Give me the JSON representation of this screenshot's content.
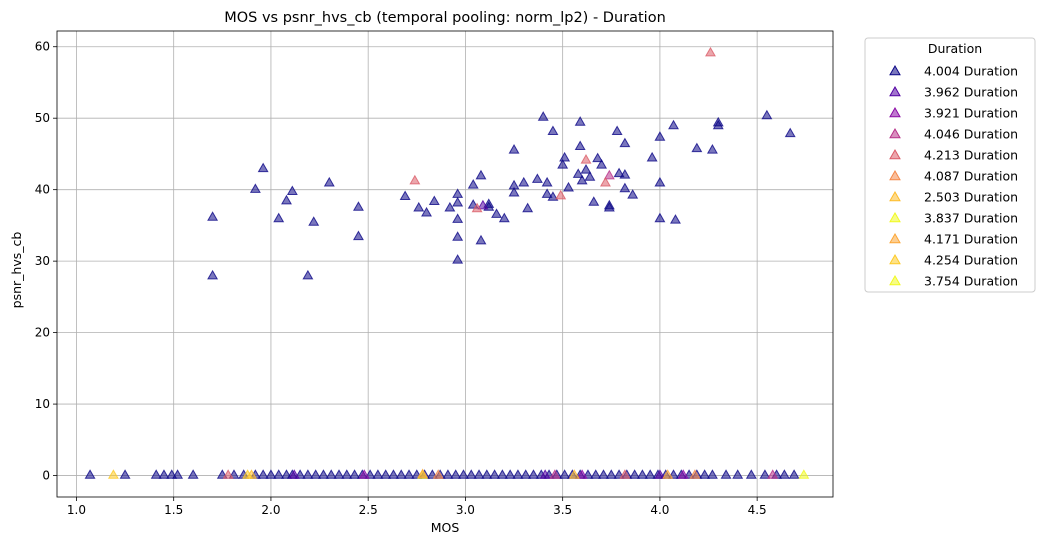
{
  "chart_data": {
    "type": "scatter",
    "title": "MOS vs psnr_hvs_cb (temporal pooling: norm_lp2) - Duration",
    "xlabel": "MOS",
    "ylabel": "psnr_hvs_cb",
    "xlim": [
      0.9,
      4.89
    ],
    "ylim": [
      -3,
      62.2
    ],
    "xticks": [
      1.0,
      1.5,
      2.0,
      2.5,
      3.0,
      3.5,
      4.0,
      4.5
    ],
    "xtick_labels": [
      "1.0",
      "1.5",
      "2.0",
      "2.5",
      "3.0",
      "3.5",
      "4.0",
      "4.5"
    ],
    "yticks": [
      0,
      10,
      20,
      30,
      40,
      50,
      60
    ],
    "ytick_labels": [
      "0",
      "10",
      "20",
      "30",
      "40",
      "50",
      "60"
    ],
    "grid": true,
    "marker": "triangle",
    "legend": {
      "title": "Duration",
      "placement": "outside-right"
    },
    "series": [
      {
        "name": "4.004 Duration",
        "color": "#0d0887",
        "points": [
          [
            1.7,
            36.2
          ],
          [
            1.7,
            28.0
          ],
          [
            1.92,
            40.1
          ],
          [
            1.96,
            43.0
          ],
          [
            2.04,
            36.0
          ],
          [
            2.08,
            38.5
          ],
          [
            2.11,
            39.8
          ],
          [
            2.19,
            28.0
          ],
          [
            2.22,
            35.5
          ],
          [
            2.3,
            41.0
          ],
          [
            2.45,
            37.6
          ],
          [
            2.45,
            33.5
          ],
          [
            2.69,
            39.1
          ],
          [
            2.76,
            37.5
          ],
          [
            2.8,
            36.8
          ],
          [
            2.84,
            38.4
          ],
          [
            2.92,
            37.5
          ],
          [
            2.96,
            38.2
          ],
          [
            2.96,
            39.4
          ],
          [
            2.96,
            35.9
          ],
          [
            2.96,
            33.4
          ],
          [
            2.96,
            30.2
          ],
          [
            3.04,
            37.9
          ],
          [
            3.04,
            40.7
          ],
          [
            3.08,
            42.0
          ],
          [
            3.08,
            32.9
          ],
          [
            3.12,
            37.6
          ],
          [
            3.12,
            38.0
          ],
          [
            3.16,
            36.6
          ],
          [
            3.2,
            36.0
          ],
          [
            3.25,
            45.6
          ],
          [
            3.25,
            40.6
          ],
          [
            3.25,
            39.6
          ],
          [
            3.3,
            41.0
          ],
          [
            3.32,
            37.4
          ],
          [
            3.37,
            41.5
          ],
          [
            3.4,
            50.2
          ],
          [
            3.42,
            41.0
          ],
          [
            3.42,
            39.4
          ],
          [
            3.45,
            48.2
          ],
          [
            3.45,
            39.0
          ],
          [
            3.5,
            43.5
          ],
          [
            3.51,
            44.5
          ],
          [
            3.53,
            40.3
          ],
          [
            3.58,
            42.2
          ],
          [
            3.59,
            49.5
          ],
          [
            3.59,
            46.1
          ],
          [
            3.6,
            41.3
          ],
          [
            3.62,
            42.8
          ],
          [
            3.64,
            41.8
          ],
          [
            3.66,
            38.3
          ],
          [
            3.68,
            44.4
          ],
          [
            3.7,
            43.5
          ],
          [
            3.74,
            37.5
          ],
          [
            3.74,
            37.8
          ],
          [
            3.78,
            48.2
          ],
          [
            3.79,
            42.3
          ],
          [
            3.82,
            46.5
          ],
          [
            3.82,
            42.1
          ],
          [
            3.82,
            40.2
          ],
          [
            3.86,
            39.3
          ],
          [
            3.96,
            44.5
          ],
          [
            4.0,
            47.4
          ],
          [
            4.0,
            41.0
          ],
          [
            4.0,
            36.0
          ],
          [
            4.07,
            49.0
          ],
          [
            4.08,
            35.8
          ],
          [
            4.19,
            45.8
          ],
          [
            4.27,
            45.6
          ],
          [
            4.3,
            49.4
          ],
          [
            4.3,
            49.0
          ],
          [
            4.55,
            50.4
          ],
          [
            4.67,
            47.9
          ],
          [
            1.07,
            0.1
          ],
          [
            1.25,
            0.1
          ],
          [
            1.41,
            0.1
          ],
          [
            1.45,
            0.1
          ],
          [
            1.49,
            0.1
          ],
          [
            1.52,
            0.1
          ],
          [
            1.6,
            0.1
          ],
          [
            1.75,
            0.1
          ],
          [
            1.81,
            0.1
          ],
          [
            1.86,
            0.1
          ],
          [
            1.92,
            0.1
          ],
          [
            1.96,
            0.1
          ],
          [
            2.0,
            0.1
          ],
          [
            2.04,
            0.1
          ],
          [
            2.08,
            0.1
          ],
          [
            2.11,
            0.1
          ],
          [
            2.15,
            0.1
          ],
          [
            2.19,
            0.1
          ],
          [
            2.23,
            0.1
          ],
          [
            2.27,
            0.1
          ],
          [
            2.31,
            0.1
          ],
          [
            2.35,
            0.1
          ],
          [
            2.39,
            0.1
          ],
          [
            2.43,
            0.1
          ],
          [
            2.47,
            0.1
          ],
          [
            2.51,
            0.1
          ],
          [
            2.55,
            0.1
          ],
          [
            2.59,
            0.1
          ],
          [
            2.63,
            0.1
          ],
          [
            2.67,
            0.1
          ],
          [
            2.71,
            0.1
          ],
          [
            2.75,
            0.1
          ],
          [
            2.79,
            0.1
          ],
          [
            2.83,
            0.1
          ],
          [
            2.87,
            0.1
          ],
          [
            2.91,
            0.1
          ],
          [
            2.95,
            0.1
          ],
          [
            2.99,
            0.1
          ],
          [
            3.03,
            0.1
          ],
          [
            3.07,
            0.1
          ],
          [
            3.11,
            0.1
          ],
          [
            3.15,
            0.1
          ],
          [
            3.19,
            0.1
          ],
          [
            3.23,
            0.1
          ],
          [
            3.27,
            0.1
          ],
          [
            3.31,
            0.1
          ],
          [
            3.35,
            0.1
          ],
          [
            3.39,
            0.1
          ],
          [
            3.43,
            0.1
          ],
          [
            3.47,
            0.1
          ],
          [
            3.51,
            0.1
          ],
          [
            3.55,
            0.1
          ],
          [
            3.59,
            0.1
          ],
          [
            3.63,
            0.1
          ],
          [
            3.67,
            0.1
          ],
          [
            3.71,
            0.1
          ],
          [
            3.75,
            0.1
          ],
          [
            3.79,
            0.1
          ],
          [
            3.83,
            0.1
          ],
          [
            3.87,
            0.1
          ],
          [
            3.91,
            0.1
          ],
          [
            3.95,
            0.1
          ],
          [
            3.99,
            0.1
          ],
          [
            4.03,
            0.1
          ],
          [
            4.07,
            0.1
          ],
          [
            4.11,
            0.1
          ],
          [
            4.15,
            0.1
          ],
          [
            4.19,
            0.1
          ],
          [
            4.23,
            0.1
          ],
          [
            4.27,
            0.1
          ],
          [
            4.34,
            0.1
          ],
          [
            4.4,
            0.1
          ],
          [
            4.47,
            0.1
          ],
          [
            4.54,
            0.1
          ],
          [
            4.6,
            0.1
          ],
          [
            4.64,
            0.1
          ],
          [
            4.69,
            0.1
          ]
        ]
      },
      {
        "name": "3.962 Duration",
        "color": "#5302a3",
        "points": [
          [
            3.09,
            37.8
          ],
          [
            2.12,
            0.1
          ],
          [
            3.41,
            0.1
          ],
          [
            4.0,
            0.1
          ]
        ]
      },
      {
        "name": "3.921 Duration",
        "color": "#8b0aa5",
        "points": [
          [
            3.6,
            0.1
          ],
          [
            4.12,
            0.1
          ],
          [
            2.48,
            0.1
          ]
        ]
      },
      {
        "name": "4.046 Duration",
        "color": "#b83289",
        "points": [
          [
            3.74,
            42.0
          ],
          [
            3.46,
            0.1
          ],
          [
            4.58,
            0.1
          ]
        ]
      },
      {
        "name": "4.213 Duration",
        "color": "#db5c68",
        "points": [
          [
            4.26,
            59.2
          ],
          [
            3.62,
            44.2
          ],
          [
            2.74,
            41.3
          ],
          [
            3.49,
            39.2
          ],
          [
            3.72,
            41.0
          ],
          [
            3.06,
            37.4
          ],
          [
            1.78,
            0.1
          ],
          [
            3.82,
            0.1
          ]
        ]
      },
      {
        "name": "4.087 Duration",
        "color": "#f48849",
        "points": [
          [
            2.86,
            0.1
          ],
          [
            4.18,
            0.1
          ]
        ]
      },
      {
        "name": "2.503 Duration",
        "color": "#febc2a",
        "points": [
          [
            1.9,
            0.1
          ],
          [
            3.56,
            0.1
          ]
        ]
      },
      {
        "name": "3.837 Duration",
        "color": "#f0f921",
        "points": [
          [
            2.78,
            0.1
          ]
        ]
      },
      {
        "name": "4.171 Duration",
        "color": "#fca636",
        "points": [
          [
            2.78,
            0.2
          ],
          [
            4.04,
            0.1
          ]
        ]
      },
      {
        "name": "4.254 Duration",
        "color": "#fdca26",
        "points": [
          [
            1.19,
            0.1
          ],
          [
            1.88,
            0.1
          ]
        ]
      },
      {
        "name": "3.754 Duration",
        "color": "#f0f921",
        "points": [
          [
            4.74,
            0.1
          ]
        ]
      }
    ]
  }
}
